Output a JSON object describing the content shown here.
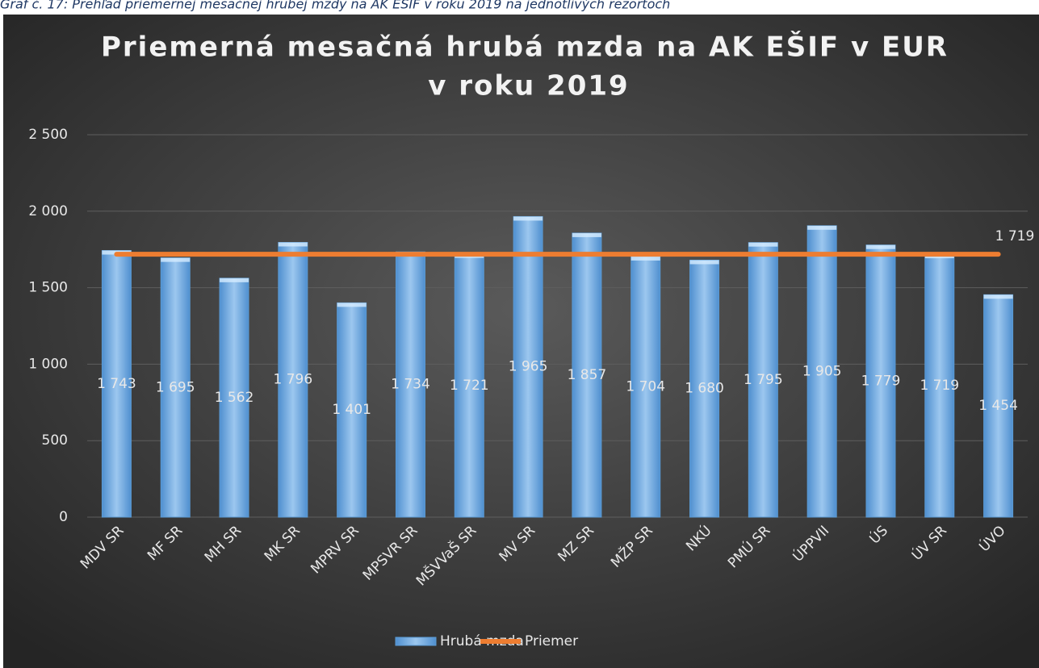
{
  "caption": "Graf č. 17: Prehľad priemernej mesačnej hrubej mzdy na AK EŠIF v roku 2019 na jednotlivých rezortoch",
  "chart_data": {
    "type": "bar",
    "title": [
      "Priemerná mesačná hrubá mzda  na AK EŠIF v EUR",
      "v roku 2019"
    ],
    "categories": [
      "MDV SR",
      "MF SR",
      "MH SR",
      "MK SR",
      "MPRV SR",
      "MPSVR SR",
      "MŠVVaŠ SR",
      "MV SR",
      "MZ SR",
      "MŽP SR",
      "NKÚ",
      "PMÚ SR",
      "ÚPPVII",
      "ÚS",
      "ÚV SR",
      "ÚVO"
    ],
    "series": [
      {
        "name": "Hrubá mzda",
        "type": "bar",
        "color": "#5b9bd5",
        "values": [
          1743,
          1695,
          1562,
          1796,
          1401,
          1734,
          1721,
          1965,
          1857,
          1704,
          1680,
          1795,
          1905,
          1779,
          1719,
          1454
        ],
        "value_labels": [
          "1 743",
          "1 695",
          "1 562",
          "1 796",
          "1 401",
          "1 734",
          "1 721",
          "1 965",
          "1 857",
          "1 704",
          "1 680",
          "1 795",
          "1 905",
          "1 779",
          "1 719",
          "1 454"
        ]
      },
      {
        "name": "Priemer",
        "type": "line",
        "color": "#ed7d31",
        "values": [
          1719,
          1719,
          1719,
          1719,
          1719,
          1719,
          1719,
          1719,
          1719,
          1719,
          1719,
          1719,
          1719,
          1719,
          1719,
          1719
        ],
        "value_labels": [
          null,
          null,
          null,
          null,
          null,
          null,
          null,
          null,
          null,
          null,
          null,
          null,
          null,
          null,
          null,
          "1 719"
        ]
      }
    ],
    "ylim": [
      0,
      2500
    ],
    "yticks": [
      0,
      500,
      {
        "value": 1000,
        "label": "1 000"
      },
      {
        "value": 1500,
        "label": "1 500"
      },
      {
        "value": 2000,
        "label": "2 000"
      },
      {
        "value": 2500,
        "label": "2 500"
      }
    ],
    "grid": true,
    "legend": "bottom"
  }
}
